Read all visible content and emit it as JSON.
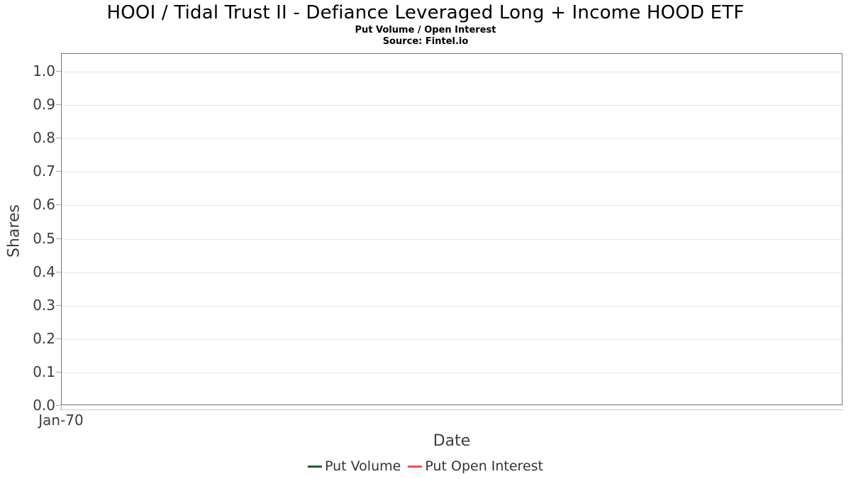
{
  "chart_data": {
    "type": "line",
    "title": "HOOI / Tidal Trust II - Defiance Leveraged Long + Income HOOD ETF",
    "subtitle": "Put Volume / Open Interest",
    "source": "Source: Fintel.io",
    "xlabel": "Date",
    "ylabel": "Shares",
    "xticks": [
      "Jan-70"
    ],
    "yticks": [
      "1.0",
      "0.9",
      "0.8",
      "0.7",
      "0.6",
      "0.5",
      "0.4",
      "0.3",
      "0.2",
      "0.1",
      "0.0"
    ],
    "ylim": [
      0.0,
      1.05
    ],
    "grid": "horizontal",
    "legend_position": "bottom",
    "series": [
      {
        "name": "Put Volume",
        "color": "#255c35",
        "x": [],
        "values": []
      },
      {
        "name": "Put Open Interest",
        "color": "#ef5350",
        "x": [],
        "values": []
      }
    ]
  },
  "colors": {
    "plot_border": "#757575",
    "gridline": "#e6e6e6",
    "axis_line": "#cccccc",
    "tick_text": "#3c3c3c",
    "axis_title_text": "#3f3f3f",
    "legend_text": "#333333",
    "put_volume": "#255c35",
    "put_open_interest": "#ef5350"
  }
}
